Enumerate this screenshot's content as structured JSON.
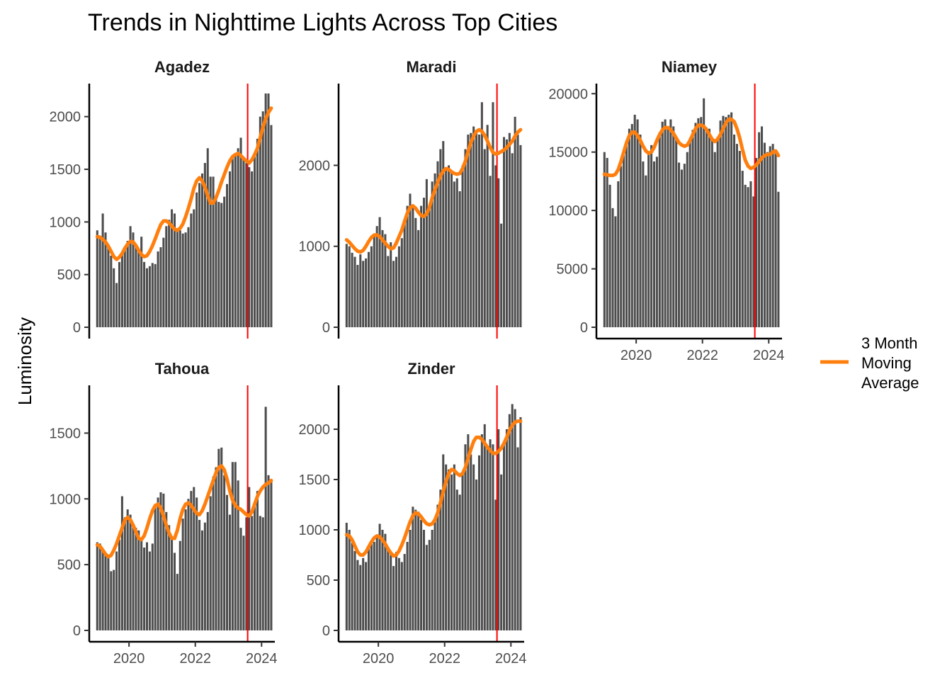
{
  "chart_data": {
    "type": "bar",
    "title": "Trends in Nighttime Lights Across Top Cities",
    "ylabel": "Luminosity",
    "xlabel": "",
    "x_time_start": 2019.0,
    "months_per_series": 64,
    "xlim": [
      2018.8,
      2024.4
    ],
    "xticks": [
      2020,
      2022,
      2024
    ],
    "xtick_labels": [
      "2020",
      "2022",
      "2024"
    ],
    "event_line_x": 2023.58,
    "event_line_color": "#ff0000",
    "bar_color": "#4d4d4d",
    "moving_average_color": "#ff7f0e",
    "legend": {
      "entries": [
        "3 Month Moving Average"
      ],
      "lines": [
        "3 Month",
        "Moving",
        "Average"
      ],
      "placement": "right"
    },
    "panels": [
      {
        "name": "Agadez",
        "ylim": [
          0,
          2260
        ],
        "yticks": [
          0,
          500,
          1000,
          1500,
          2000
        ],
        "ytick_labels": [
          "0",
          "500",
          "1000",
          "1500",
          "2000"
        ],
        "values": [
          920,
          840,
          1080,
          900,
          780,
          680,
          560,
          420,
          620,
          700,
          760,
          820,
          960,
          900,
          780,
          720,
          860,
          620,
          560,
          580,
          610,
          600,
          720,
          760,
          850,
          960,
          1020,
          1120,
          1080,
          940,
          920,
          890,
          900,
          950,
          1080,
          1120,
          1280,
          1370,
          1460,
          1560,
          1700,
          1430,
          1430,
          1250,
          1190,
          1180,
          1240,
          1360,
          1480,
          1600,
          1650,
          1700,
          1800,
          1620,
          1560,
          1520,
          1480,
          1620,
          1790,
          2000,
          2050,
          2220,
          2220,
          1920
        ],
        "moving_average": [
          860,
          855,
          835,
          810,
          770,
          720,
          670,
          645,
          665,
          700,
          750,
          790,
          815,
          810,
          775,
          730,
          690,
          670,
          680,
          720,
          775,
          840,
          910,
          975,
          1010,
          1010,
          990,
          960,
          930,
          920,
          940,
          980,
          1050,
          1130,
          1220,
          1320,
          1390,
          1420,
          1390,
          1330,
          1250,
          1180,
          1180,
          1230,
          1300,
          1380,
          1450,
          1520,
          1580,
          1620,
          1640,
          1650,
          1630,
          1600,
          1580,
          1560,
          1590,
          1640,
          1700,
          1800,
          1900,
          1980,
          2040,
          2080
        ]
      },
      {
        "name": "Maradi",
        "ylim": [
          0,
          2940
        ],
        "yticks": [
          0,
          1000,
          2000
        ],
        "ytick_labels": [
          "0",
          "1000",
          "2000"
        ],
        "values": [
          1030,
          1000,
          920,
          870,
          770,
          900,
          820,
          850,
          930,
          1000,
          1150,
          1250,
          1360,
          1200,
          1150,
          880,
          1050,
          820,
          870,
          1000,
          1100,
          1300,
          1500,
          1650,
          1500,
          1350,
          1200,
          1500,
          1600,
          1830,
          1480,
          1800,
          1900,
          2050,
          2200,
          2300,
          1950,
          2000,
          1900,
          1800,
          1840,
          1680,
          2000,
          2200,
          2380,
          2400,
          2480,
          2420,
          2380,
          2780,
          2200,
          2500,
          1870,
          2780,
          2000,
          1840,
          1280,
          2350,
          2320,
          2400,
          2150,
          2600,
          2380,
          2250
        ],
        "moving_average": [
          1080,
          1050,
          1010,
          970,
          940,
          930,
          950,
          1000,
          1060,
          1110,
          1140,
          1140,
          1120,
          1080,
          1040,
          1000,
          970,
          980,
          1040,
          1120,
          1200,
          1310,
          1410,
          1480,
          1500,
          1470,
          1420,
          1380,
          1370,
          1400,
          1480,
          1600,
          1700,
          1790,
          1870,
          1930,
          1960,
          1950,
          1920,
          1900,
          1890,
          1900,
          1960,
          2050,
          2170,
          2280,
          2360,
          2420,
          2440,
          2420,
          2370,
          2300,
          2220,
          2160,
          2140,
          2150,
          2170,
          2190,
          2220,
          2260,
          2300,
          2360,
          2410,
          2440
        ]
      },
      {
        "name": "Niamey",
        "ylim": [
          0,
          20380
        ],
        "yticks": [
          0,
          5000,
          10000,
          15000,
          20000
        ],
        "ytick_labels": [
          "0",
          "5000",
          "10000",
          "15000",
          "20000"
        ],
        "values": [
          15000,
          14500,
          12200,
          10200,
          9500,
          12500,
          13800,
          14800,
          16000,
          17000,
          17400,
          18200,
          17800,
          16500,
          14200,
          13000,
          14800,
          15600,
          14200,
          14600,
          16700,
          17600,
          17800,
          17000,
          17800,
          17200,
          16100,
          14100,
          13500,
          14000,
          15000,
          16200,
          16900,
          17500,
          17900,
          18000,
          19600,
          17100,
          17000,
          16000,
          15000,
          16300,
          17700,
          18100,
          18000,
          18200,
          18400,
          16500,
          15700,
          15100,
          13400,
          12200,
          12000,
          12500,
          11200,
          14500,
          16700,
          17200,
          15800,
          15000,
          15500,
          15700,
          14900,
          11600
        ],
        "moving_average": [
          13100,
          13050,
          13000,
          13000,
          13100,
          13500,
          14200,
          15000,
          15800,
          16400,
          16700,
          16700,
          16400,
          16000,
          15500,
          15100,
          14900,
          15000,
          15400,
          16000,
          16500,
          16900,
          17100,
          17100,
          16900,
          16600,
          16200,
          15800,
          15600,
          15500,
          15600,
          16000,
          16500,
          17000,
          17300,
          17300,
          17200,
          16900,
          16500,
          16100,
          15900,
          16100,
          16500,
          17000,
          17500,
          17800,
          17800,
          17600,
          17000,
          16200,
          15200,
          14300,
          13800,
          13600,
          13700,
          13900,
          14200,
          14500,
          14700,
          14800,
          14800,
          15000,
          15100,
          14700
        ]
      },
      {
        "name": "Tahoua",
        "ylim": [
          0,
          1820
        ],
        "yticks": [
          0,
          500,
          1000,
          1500
        ],
        "ytick_labels": [
          "0",
          "500",
          "1000",
          "1500"
        ],
        "values": [
          670,
          660,
          620,
          580,
          570,
          450,
          460,
          600,
          690,
          1020,
          860,
          920,
          880,
          800,
          780,
          760,
          680,
          630,
          670,
          600,
          660,
          950,
          1010,
          1050,
          1040,
          900,
          800,
          700,
          590,
          430,
          680,
          850,
          920,
          1000,
          1060,
          1090,
          1010,
          840,
          760,
          820,
          900,
          1020,
          1170,
          1240,
          1380,
          1390,
          1180,
          1030,
          880,
          1280,
          1280,
          1140,
          780,
          720,
          860,
          1090,
          870,
          960,
          1060,
          870,
          860,
          1700,
          1180,
          1150
        ],
        "moving_average": [
          650,
          640,
          610,
          580,
          560,
          570,
          610,
          660,
          720,
          780,
          840,
          860,
          840,
          800,
          750,
          700,
          690,
          720,
          780,
          850,
          910,
          950,
          960,
          930,
          870,
          800,
          740,
          700,
          700,
          760,
          850,
          920,
          960,
          970,
          950,
          920,
          890,
          880,
          910,
          960,
          1020,
          1080,
          1140,
          1200,
          1240,
          1250,
          1220,
          1150,
          1060,
          990,
          950,
          930,
          920,
          900,
          880,
          870,
          900,
          960,
          1020,
          1060,
          1090,
          1110,
          1120,
          1140
        ]
      },
      {
        "name": "Zinder",
        "ylim": [
          0,
          2380
        ],
        "yticks": [
          0,
          500,
          1000,
          1500,
          2000
        ],
        "ytick_labels": [
          "0",
          "500",
          "1000",
          "1500",
          "2000"
        ],
        "values": [
          1070,
          1000,
          870,
          790,
          700,
          650,
          720,
          680,
          820,
          860,
          880,
          930,
          1060,
          1000,
          960,
          830,
          750,
          640,
          780,
          720,
          680,
          760,
          880,
          1000,
          1230,
          1200,
          1180,
          1100,
          1000,
          850,
          900,
          1000,
          1100,
          1250,
          1400,
          1750,
          1650,
          1600,
          1550,
          1650,
          1400,
          1350,
          1550,
          1850,
          1950,
          1750,
          1650,
          1500,
          1740,
          1950,
          2050,
          1830,
          1900,
          1850,
          1300,
          2000,
          1550,
          1880,
          2000,
          2150,
          2250,
          2200,
          1820,
          2120
        ],
        "moving_average": [
          950,
          940,
          900,
          840,
          780,
          750,
          750,
          780,
          830,
          880,
          920,
          940,
          930,
          900,
          860,
          810,
          770,
          740,
          750,
          790,
          850,
          920,
          1000,
          1080,
          1140,
          1170,
          1160,
          1130,
          1090,
          1060,
          1050,
          1060,
          1100,
          1170,
          1270,
          1380,
          1480,
          1560,
          1600,
          1590,
          1560,
          1540,
          1560,
          1620,
          1710,
          1800,
          1880,
          1920,
          1920,
          1900,
          1860,
          1820,
          1790,
          1760,
          1760,
          1780,
          1810,
          1860,
          1920,
          1990,
          2040,
          2070,
          2080,
          2080
        ]
      }
    ]
  }
}
